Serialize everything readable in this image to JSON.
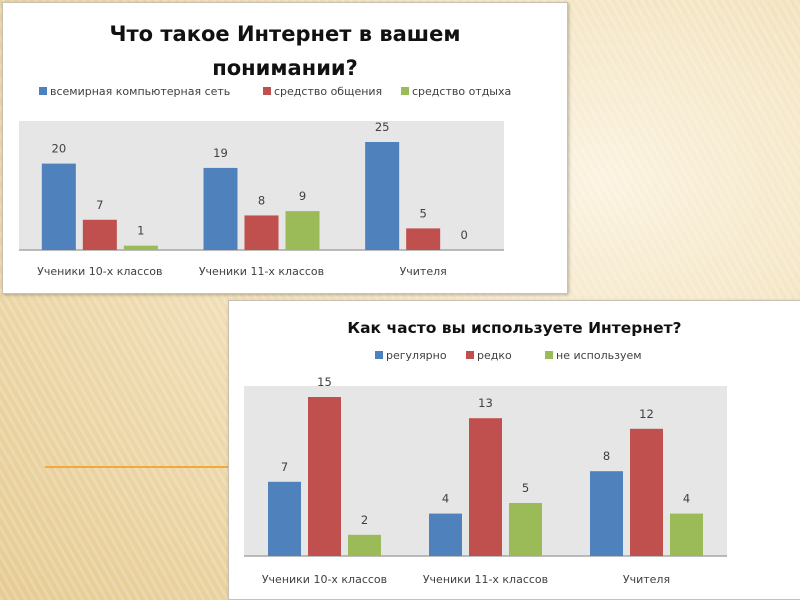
{
  "chart_data": [
    {
      "type": "bar",
      "title_lines": [
        "Что такое Интернет в вашем",
        "понимании?"
      ],
      "categories": [
        "Ученики 10-х классов",
        "Ученики 11-х классов",
        "Учителя"
      ],
      "series": [
        {
          "name": "всемирная компьютерная сеть",
          "color": "#4f81bd",
          "values": [
            20,
            19,
            25
          ]
        },
        {
          "name": "средство общения",
          "color": "#c0504d",
          "values": [
            7,
            8,
            5
          ]
        },
        {
          "name": "средство отдыха",
          "color": "#9bbb59",
          "values": [
            1,
            9,
            0
          ]
        }
      ],
      "legend": "top",
      "grid": false,
      "ylim": [
        0,
        30
      ]
    },
    {
      "type": "bar",
      "title_lines": [
        "Как часто вы используете Интернет?"
      ],
      "categories": [
        "Ученики 10-х классов",
        "Ученики 11-х классов",
        "Учителя"
      ],
      "series": [
        {
          "name": "регулярно",
          "color": "#4f81bd",
          "values": [
            7,
            4,
            8
          ]
        },
        {
          "name": "редко",
          "color": "#c0504d",
          "values": [
            15,
            13,
            12
          ]
        },
        {
          "name": "не используем",
          "color": "#9bbb59",
          "values": [
            2,
            5,
            4
          ]
        }
      ],
      "legend": "top",
      "grid": false,
      "ylim": [
        0,
        16
      ]
    }
  ]
}
